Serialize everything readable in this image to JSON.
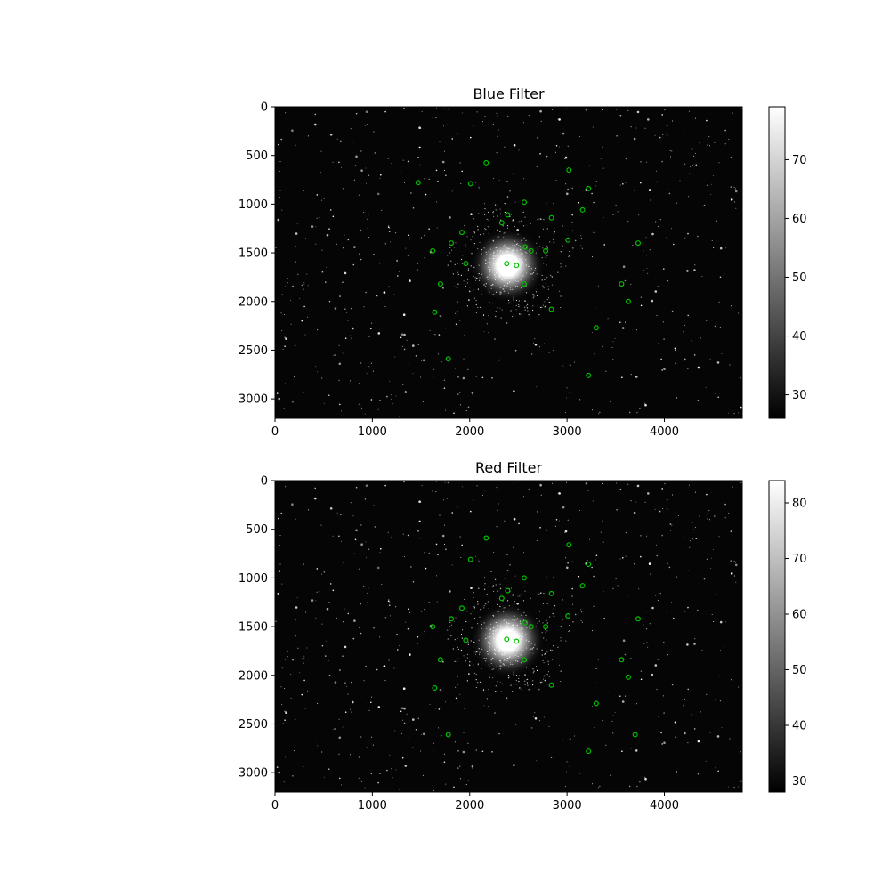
{
  "chart_data": [
    {
      "type": "heatmap",
      "title": "Blue Filter",
      "xlim": [
        0,
        4800
      ],
      "ylim": [
        3200,
        0
      ],
      "x_ticks": [
        "0",
        "1000",
        "2000",
        "3000",
        "4000"
      ],
      "y_ticks": [
        "0",
        "500",
        "1000",
        "1500",
        "2000",
        "2500",
        "3000"
      ],
      "colormap": "gray",
      "colorbar": {
        "range": [
          26,
          79
        ],
        "ticks": [
          "30",
          "40",
          "50",
          "60",
          "70"
        ]
      },
      "cluster_center": [
        2390,
        1630
      ],
      "marker_color": "#00c000",
      "markers": [
        [
          2170,
          575
        ],
        [
          1470,
          780
        ],
        [
          2010,
          790
        ],
        [
          3020,
          650
        ],
        [
          3220,
          840
        ],
        [
          2560,
          980
        ],
        [
          2390,
          1110
        ],
        [
          2330,
          1190
        ],
        [
          3160,
          1060
        ],
        [
          2840,
          1140
        ],
        [
          1920,
          1290
        ],
        [
          1810,
          1400
        ],
        [
          3010,
          1370
        ],
        [
          3730,
          1400
        ],
        [
          1620,
          1480
        ],
        [
          2570,
          1440
        ],
        [
          2630,
          1480
        ],
        [
          2780,
          1480
        ],
        [
          1960,
          1610
        ],
        [
          2380,
          1610
        ],
        [
          2480,
          1630
        ],
        [
          1700,
          1820
        ],
        [
          2560,
          1820
        ],
        [
          3560,
          1820
        ],
        [
          3630,
          2000
        ],
        [
          1640,
          2110
        ],
        [
          2840,
          2080
        ],
        [
          3300,
          2270
        ],
        [
          1780,
          2590
        ],
        [
          3220,
          2760
        ]
      ]
    },
    {
      "type": "heatmap",
      "title": "Red Filter",
      "xlim": [
        0,
        4800
      ],
      "ylim": [
        3200,
        0
      ],
      "x_ticks": [
        "0",
        "1000",
        "2000",
        "3000",
        "4000"
      ],
      "y_ticks": [
        "0",
        "500",
        "1000",
        "1500",
        "2000",
        "2500",
        "3000"
      ],
      "colormap": "gray",
      "colorbar": {
        "range": [
          28,
          84
        ],
        "ticks": [
          "30",
          "40",
          "50",
          "60",
          "70",
          "80"
        ]
      },
      "cluster_center": [
        2390,
        1640
      ],
      "marker_color": "#00c000",
      "markers": [
        [
          2170,
          590
        ],
        [
          2010,
          810
        ],
        [
          3020,
          660
        ],
        [
          3220,
          860
        ],
        [
          2560,
          1000
        ],
        [
          2390,
          1130
        ],
        [
          2330,
          1210
        ],
        [
          3160,
          1080
        ],
        [
          2840,
          1160
        ],
        [
          1920,
          1310
        ],
        [
          1810,
          1420
        ],
        [
          3010,
          1390
        ],
        [
          3730,
          1420
        ],
        [
          1620,
          1500
        ],
        [
          2570,
          1460
        ],
        [
          2630,
          1500
        ],
        [
          2780,
          1500
        ],
        [
          1960,
          1640
        ],
        [
          2380,
          1630
        ],
        [
          2480,
          1650
        ],
        [
          1700,
          1840
        ],
        [
          2560,
          1840
        ],
        [
          3560,
          1840
        ],
        [
          3630,
          2020
        ],
        [
          1640,
          2130
        ],
        [
          2840,
          2100
        ],
        [
          3300,
          2290
        ],
        [
          1780,
          2610
        ],
        [
          3700,
          2610
        ],
        [
          3220,
          2780
        ]
      ]
    }
  ]
}
